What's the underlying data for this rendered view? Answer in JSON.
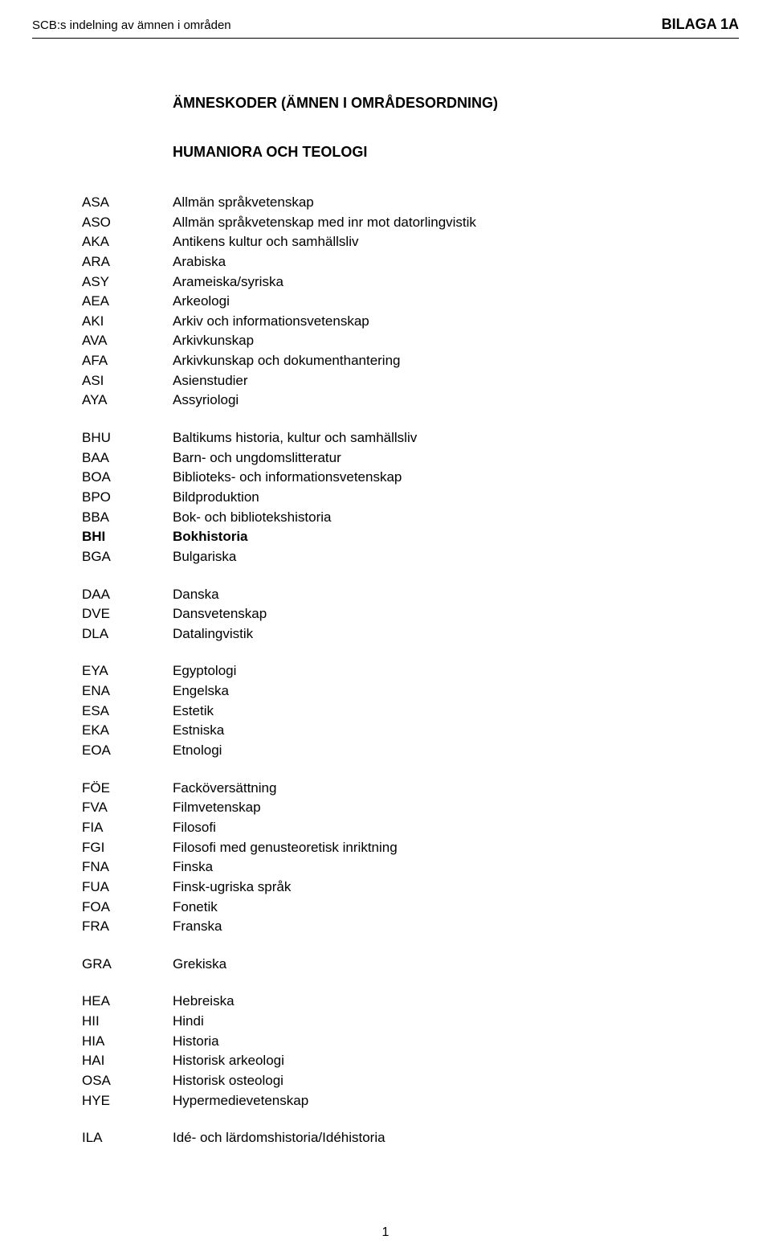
{
  "header": {
    "left": "SCB:s indelning av ämnen i områden",
    "right": "BILAGA 1A"
  },
  "title": {
    "main": "ÄMNESKODER (ÄMNEN I OMRÅDESORDNING)",
    "sub": "HUMANIORA OCH TEOLOGI"
  },
  "groups": [
    {
      "rows": [
        {
          "code": "ASA",
          "desc": "Allmän språkvetenskap",
          "bold": false
        },
        {
          "code": "ASO",
          "desc": "Allmän språkvetenskap med inr mot datorlingvistik",
          "bold": false
        },
        {
          "code": "AKA",
          "desc": "Antikens kultur och samhällsliv",
          "bold": false
        },
        {
          "code": "ARA",
          "desc": "Arabiska",
          "bold": false
        },
        {
          "code": "ASY",
          "desc": "Arameiska/syriska",
          "bold": false
        },
        {
          "code": "AEA",
          "desc": "Arkeologi",
          "bold": false
        },
        {
          "code": "AKI",
          "desc": "Arkiv och informationsvetenskap",
          "bold": false
        },
        {
          "code": "AVA",
          "desc": "Arkivkunskap",
          "bold": false
        },
        {
          "code": "AFA",
          "desc": "Arkivkunskap och dokumenthantering",
          "bold": false
        },
        {
          "code": "ASI",
          "desc": "Asienstudier",
          "bold": false
        },
        {
          "code": "AYA",
          "desc": "Assyriologi",
          "bold": false
        }
      ]
    },
    {
      "rows": [
        {
          "code": "BHU",
          "desc": "Baltikums historia, kultur och samhällsliv",
          "bold": false
        },
        {
          "code": "BAA",
          "desc": "Barn- och ungdomslitteratur",
          "bold": false
        },
        {
          "code": "BOA",
          "desc": "Biblioteks- och informationsvetenskap",
          "bold": false
        },
        {
          "code": "BPO",
          "desc": "Bildproduktion",
          "bold": false
        },
        {
          "code": "BBA",
          "desc": "Bok- och bibliotekshistoria",
          "bold": false
        },
        {
          "code": "BHI",
          "desc": "Bokhistoria",
          "bold": true
        },
        {
          "code": "BGA",
          "desc": "Bulgariska",
          "bold": false
        }
      ]
    },
    {
      "rows": [
        {
          "code": "DAA",
          "desc": "Danska",
          "bold": false
        },
        {
          "code": "DVE",
          "desc": "Dansvetenskap",
          "bold": false
        },
        {
          "code": "DLA",
          "desc": "Datalingvistik",
          "bold": false
        }
      ]
    },
    {
      "rows": [
        {
          "code": "EYA",
          "desc": "Egyptologi",
          "bold": false
        },
        {
          "code": "ENA",
          "desc": "Engelska",
          "bold": false
        },
        {
          "code": "ESA",
          "desc": "Estetik",
          "bold": false
        },
        {
          "code": "EKA",
          "desc": "Estniska",
          "bold": false
        },
        {
          "code": "EOA",
          "desc": "Etnologi",
          "bold": false
        }
      ]
    },
    {
      "rows": [
        {
          "code": "FÖE",
          "desc": "Facköversättning",
          "bold": false
        },
        {
          "code": "FVA",
          "desc": "Filmvetenskap",
          "bold": false
        },
        {
          "code": "FIA",
          "desc": "Filosofi",
          "bold": false
        },
        {
          "code": "FGI",
          "desc": "Filosofi med genusteoretisk inriktning",
          "bold": false
        },
        {
          "code": "FNA",
          "desc": "Finska",
          "bold": false
        },
        {
          "code": "FUA",
          "desc": "Finsk-ugriska språk",
          "bold": false
        },
        {
          "code": "FOA",
          "desc": "Fonetik",
          "bold": false
        },
        {
          "code": "FRA",
          "desc": "Franska",
          "bold": false
        }
      ]
    },
    {
      "rows": [
        {
          "code": "GRA",
          "desc": "Grekiska",
          "bold": false
        }
      ]
    },
    {
      "rows": [
        {
          "code": "HEA",
          "desc": "Hebreiska",
          "bold": false
        },
        {
          "code": "HII",
          "desc": "Hindi",
          "bold": false
        },
        {
          "code": "HIA",
          "desc": "Historia",
          "bold": false
        },
        {
          "code": "HAI",
          "desc": "Historisk arkeologi",
          "bold": false
        },
        {
          "code": "OSA",
          "desc": "Historisk osteologi",
          "bold": false
        },
        {
          "code": "HYE",
          "desc": "Hypermedievetenskap",
          "bold": false
        }
      ]
    },
    {
      "rows": [
        {
          "code": "ILA",
          "desc": "Idé- och lärdomshistoria/Idéhistoria",
          "bold": false
        }
      ]
    }
  ],
  "page_number": "1"
}
